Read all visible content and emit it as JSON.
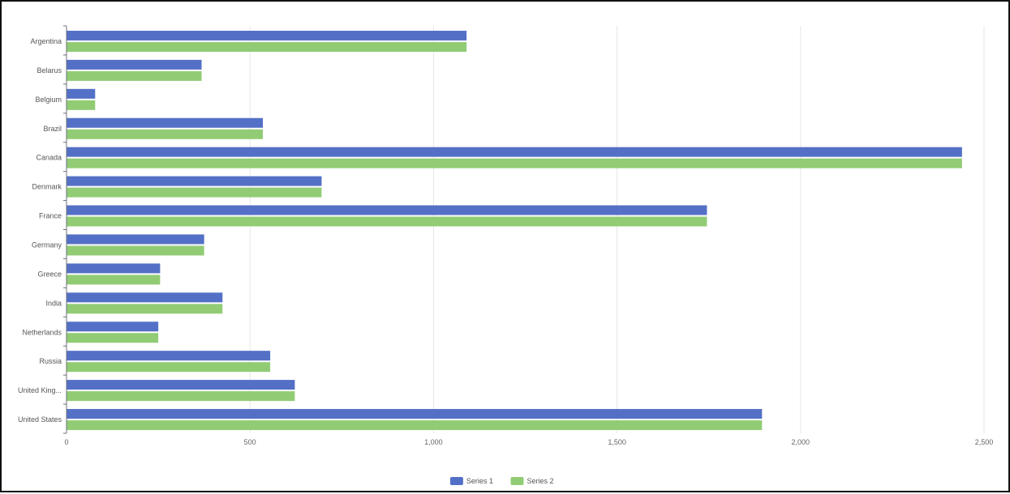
{
  "chart_data": {
    "type": "bar",
    "orientation": "horizontal",
    "title": "",
    "xlabel": "",
    "ylabel": "",
    "xlim": [
      0,
      2500
    ],
    "x_ticks": [
      0,
      500,
      1000,
      1500,
      2000,
      2500
    ],
    "x_tick_labels": [
      "0",
      "500",
      "1,000",
      "1,500",
      "2,000",
      "2,500"
    ],
    "grid": "vertical",
    "legend_position": "bottom",
    "categories": [
      "Argentina",
      "Belarus",
      "Belgium",
      "Brazil",
      "Canada",
      "Denmark",
      "France",
      "Germany",
      "Greece",
      "India",
      "Netherlands",
      "Russia",
      "United Kingdom",
      "United States"
    ],
    "category_labels": [
      "Argentina",
      "Belarus",
      "Belgium",
      "Brazil",
      "Canada",
      "Denmark",
      "France",
      "Germany",
      "Greece",
      "India",
      "Netherlands",
      "Russia",
      "United King...",
      "United States"
    ],
    "series": [
      {
        "name": "Series 1",
        "color": "#5470c6",
        "values": [
          1090,
          368,
          78,
          535,
          2440,
          695,
          1745,
          375,
          255,
          425,
          250,
          555,
          622,
          1895
        ]
      },
      {
        "name": "Series 2",
        "color": "#91cc75",
        "values": [
          1090,
          368,
          78,
          535,
          2440,
          695,
          1745,
          375,
          255,
          425,
          250,
          555,
          622,
          1895
        ]
      }
    ]
  }
}
